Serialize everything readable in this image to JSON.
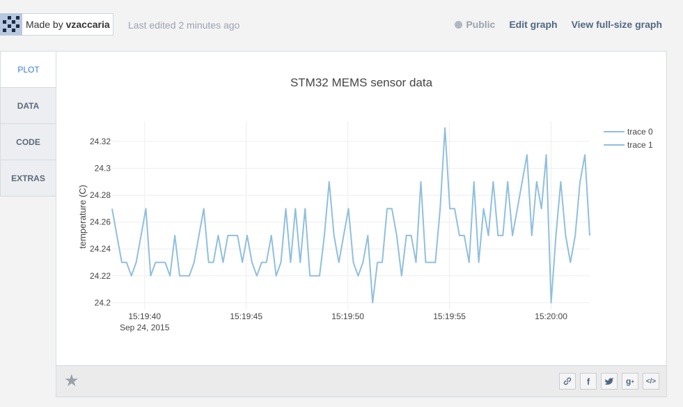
{
  "header": {
    "made_by_prefix": "Made by ",
    "author": "vzaccaria",
    "last_edited": "Last edited 2 minutes ago",
    "public_label": "Public",
    "edit_label": "Edit graph",
    "view_full_label": "View full-size graph"
  },
  "tabs": [
    {
      "label": "PLOT"
    },
    {
      "label": "DATA"
    },
    {
      "label": "CODE"
    },
    {
      "label": "EXTRAS"
    }
  ],
  "share_icons": [
    "link-icon",
    "facebook-icon",
    "twitter-icon",
    "google-plus-icon",
    "embed-icon"
  ],
  "chart_data": {
    "type": "line",
    "title": "STM32 MEMS sensor data",
    "ylabel": "temperature (C)",
    "xlabel": "",
    "x_ticks": [
      "15:19:40",
      "15:19:45",
      "15:19:50",
      "15:19:55",
      "15:20:00"
    ],
    "x_tick_sub": "Sep 24, 2015",
    "x_range_seconds_from_15_19_40": [
      -1.6,
      21.9
    ],
    "ylim": [
      24.195,
      24.335
    ],
    "y_ticks": [
      "24.2",
      "24.22",
      "24.24",
      "24.26",
      "24.28",
      "24.3",
      "24.32"
    ],
    "grid": true,
    "legend_position": "top-right",
    "line_color": "#8fbfdd",
    "series": [
      {
        "name": "trace 0",
        "values": [
          24.27,
          24.25,
          24.23,
          24.23,
          24.22,
          24.23,
          24.25,
          24.27,
          24.22,
          24.23,
          24.23,
          24.23,
          24.22,
          24.25,
          24.22,
          24.22,
          24.22,
          24.23,
          24.25,
          24.27,
          24.23,
          24.23,
          24.25,
          24.23,
          24.25,
          24.25,
          24.25,
          24.23,
          24.25,
          24.23,
          24.22,
          24.23,
          24.23,
          24.25,
          24.22,
          24.23,
          24.27,
          24.23,
          24.27,
          24.23,
          24.27,
          24.22,
          24.22,
          24.22,
          24.25,
          24.29,
          24.25,
          24.23,
          24.25,
          24.27,
          24.23,
          24.22,
          24.23,
          24.25,
          24.2,
          24.23,
          24.23,
          24.27,
          24.27,
          24.25,
          24.22,
          24.25,
          24.25,
          24.23,
          24.29,
          24.23,
          24.23,
          24.23,
          24.27,
          24.33,
          24.27,
          24.27,
          24.25,
          24.25,
          24.23,
          24.29,
          24.23,
          24.27,
          24.25,
          24.29,
          24.25,
          24.25,
          24.29,
          24.25,
          24.27,
          24.29,
          24.31,
          24.25,
          24.29,
          24.27,
          24.31,
          24.2,
          24.25,
          24.29,
          24.25,
          24.23,
          24.25,
          24.29,
          24.31,
          24.25
        ]
      },
      {
        "name": "trace 1",
        "values": []
      }
    ]
  }
}
